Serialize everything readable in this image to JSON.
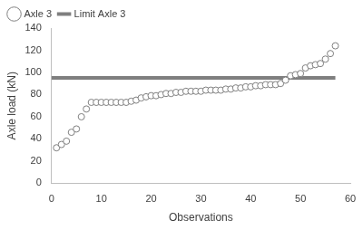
{
  "chart_data": {
    "type": "scatter",
    "x_label": "Observations",
    "y_label": "Axle load (kN)",
    "xlim": [
      0,
      60
    ],
    "xticks": [
      0,
      10,
      20,
      30,
      40,
      50,
      60
    ],
    "ylim": [
      0,
      140
    ],
    "yticks": [
      0,
      20,
      40,
      60,
      80,
      100,
      120,
      140
    ],
    "grid": false,
    "legend": "top",
    "series": [
      {
        "name": "Axle 3",
        "type": "scatter",
        "color": "#7f7f7f",
        "marker": "circle",
        "x": [
          1,
          2,
          3,
          4,
          5,
          6,
          7,
          8,
          9,
          10,
          11,
          12,
          13,
          14,
          15,
          16,
          17,
          18,
          19,
          20,
          21,
          22,
          23,
          24,
          25,
          26,
          27,
          28,
          29,
          30,
          31,
          32,
          33,
          34,
          35,
          36,
          37,
          38,
          39,
          40,
          41,
          42,
          43,
          44,
          45,
          46,
          47,
          48,
          49,
          50,
          51,
          52,
          53,
          54,
          55,
          56,
          57
        ],
        "values": [
          32,
          35,
          38,
          46,
          49,
          60,
          67,
          73,
          73,
          73,
          73,
          73,
          73,
          73,
          73,
          74,
          75,
          77,
          78,
          79,
          79,
          80,
          81,
          81,
          82,
          82,
          83,
          83,
          83,
          83,
          84,
          84,
          84,
          84,
          85,
          85,
          86,
          86,
          87,
          87,
          88,
          88,
          89,
          89,
          89,
          90,
          93,
          97,
          98,
          99,
          104,
          106,
          107,
          108,
          112,
          117,
          124
        ]
      },
      {
        "name": "Limit Axle 3",
        "type": "line",
        "color": "#7f7f7f",
        "line_style": "solid",
        "x": [
          0,
          57
        ],
        "values": [
          95,
          95
        ]
      }
    ]
  }
}
